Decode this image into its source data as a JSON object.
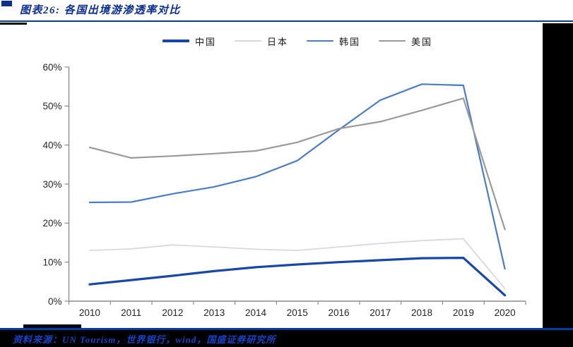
{
  "header": {
    "title": "图表26:  各国出境游渗透率对比"
  },
  "footer": {
    "source": "资料来源：UN Tourism，世界银行，wind，国盛证券研究所"
  },
  "colors": {
    "title_blue": "#0a2f91",
    "divider_blue": "#0a3aa0",
    "source_blue": "#1243c7",
    "axis_gray": "#8c8c8c",
    "tick_label": "#262626",
    "band_black": "#000000"
  },
  "chart_data": {
    "type": "line",
    "title": "各国出境游渗透率对比",
    "xlabel": "",
    "ylabel": "",
    "categories": [
      "2010",
      "2011",
      "2012",
      "2013",
      "2014",
      "2015",
      "2016",
      "2017",
      "2018",
      "2019",
      "2020"
    ],
    "ylim": [
      0,
      60
    ],
    "ytick_step": 10,
    "yticks": [
      "0%",
      "10%",
      "20%",
      "30%",
      "40%",
      "50%",
      "60%"
    ],
    "grid": false,
    "legend_position": "top-center",
    "series": [
      {
        "key": "china",
        "name": "中国",
        "color": "#1747a8",
        "line_width": 3.2,
        "values": [
          4.3,
          5.4,
          6.5,
          7.7,
          8.7,
          9.4,
          10.0,
          10.5,
          11.0,
          11.1,
          1.5
        ]
      },
      {
        "key": "japan",
        "name": "日本",
        "color": "#d9d9d9",
        "line_width": 1.8,
        "values": [
          13.0,
          13.4,
          14.4,
          13.9,
          13.3,
          13.0,
          13.9,
          14.8,
          15.5,
          16.0,
          3.2
        ]
      },
      {
        "key": "korea",
        "name": "韩国",
        "color": "#4a7cc7",
        "line_width": 2.2,
        "values": [
          25.3,
          25.4,
          27.5,
          29.3,
          31.9,
          36.0,
          43.9,
          51.5,
          55.6,
          55.3,
          8.3
        ]
      },
      {
        "key": "us",
        "name": "美国",
        "color": "#9a9a9a",
        "line_width": 2.2,
        "values": [
          39.4,
          36.7,
          37.2,
          37.8,
          38.5,
          40.7,
          44.2,
          46.0,
          48.9,
          52.0,
          18.4
        ]
      }
    ]
  }
}
